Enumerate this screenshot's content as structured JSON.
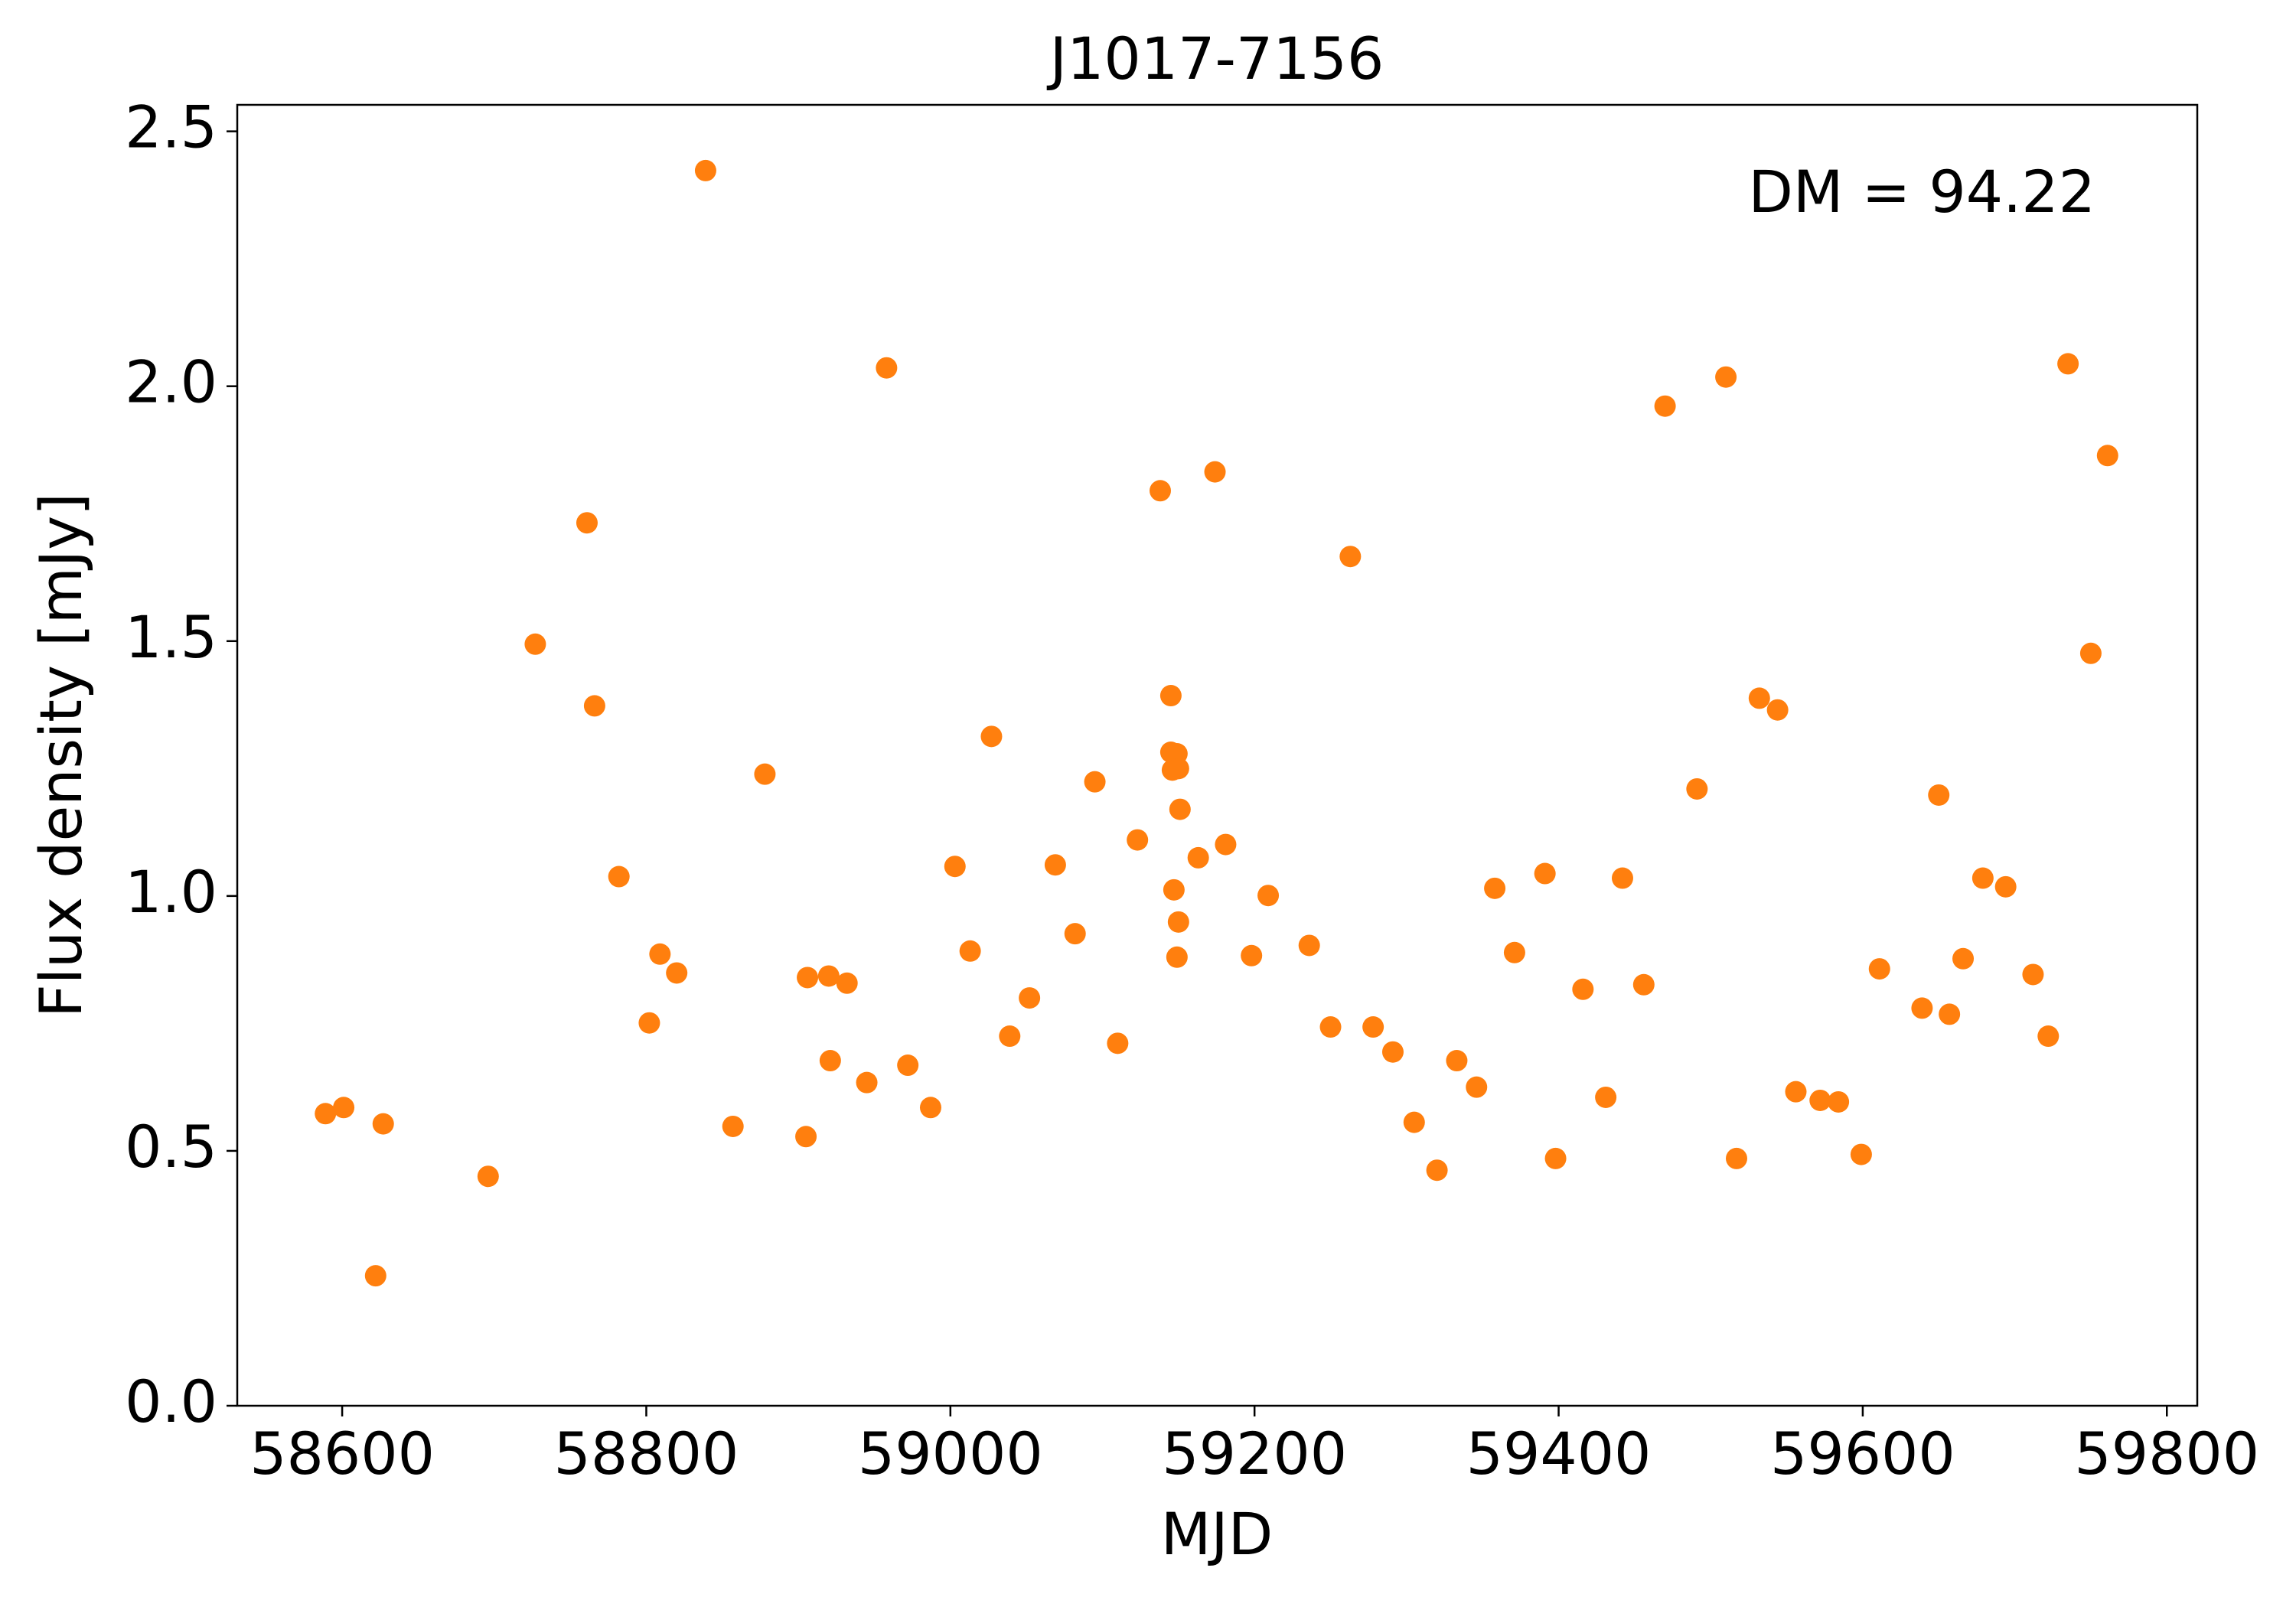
{
  "chart_data": {
    "type": "scatter",
    "title": "J1017-7156",
    "xlabel": "MJD",
    "ylabel": "Flux density [mJy]",
    "annotation": "DM = 94.22",
    "color": "#ff7f0e",
    "x": [
      58589,
      58601,
      58622,
      58627,
      58696,
      58727,
      58761,
      58766,
      58782,
      58802,
      58809,
      58820,
      58839,
      58857,
      58878,
      58905,
      58906,
      58920,
      58921,
      58932,
      58945,
      58958,
      58972,
      58987,
      59003,
      59013,
      59027,
      59039,
      59052,
      59069,
      59082,
      59095,
      59110,
      59123,
      59138,
      59145,
      59145,
      59146,
      59149,
      59150,
      59147,
      59151,
      59150,
      59149,
      59163,
      59174,
      59181,
      59198,
      59209,
      59236,
      59250,
      59263,
      59278,
      59291,
      59305,
      59320,
      59333,
      59346,
      59358,
      59371,
      59391,
      59398,
      59416,
      59431,
      59442,
      59456,
      59470,
      59491,
      59510,
      59517,
      59532,
      59544,
      59556,
      59572,
      59584,
      59599,
      59611,
      59639,
      59650,
      59657,
      59666,
      59679,
      59694,
      59712,
      59722,
      59735,
      59750,
      59761
    ],
    "values": [
      0.573,
      0.585,
      0.255,
      0.553,
      0.45,
      1.494,
      1.732,
      1.373,
      1.038,
      0.751,
      0.886,
      0.849,
      2.423,
      0.548,
      1.239,
      0.528,
      0.84,
      0.843,
      0.677,
      0.829,
      0.634,
      2.036,
      0.668,
      0.585,
      1.058,
      0.892,
      1.313,
      0.725,
      0.8,
      1.061,
      0.926,
      1.224,
      0.711,
      1.11,
      1.795,
      1.393,
      1.282,
      1.247,
      1.279,
      1.25,
      1.012,
      1.17,
      0.949,
      0.88,
      1.075,
      1.832,
      1.101,
      0.883,
      1.001,
      0.903,
      0.743,
      1.666,
      0.743,
      0.694,
      0.556,
      0.462,
      0.677,
      0.625,
      1.015,
      0.889,
      1.044,
      0.485,
      0.817,
      0.605,
      1.035,
      0.826,
      1.961,
      1.21,
      2.018,
      0.485,
      1.388,
      1.365,
      0.616,
      0.599,
      0.596,
      0.493,
      0.857,
      0.78,
      1.198,
      0.768,
      0.877,
      1.035,
      1.018,
      0.846,
      0.725,
      2.044,
      1.476,
      1.864
    ],
    "xlim": [
      58531,
      59820
    ],
    "ylim": [
      0,
      2.552
    ],
    "xticks": [
      58600,
      58800,
      59000,
      59200,
      59400,
      59600,
      59800
    ],
    "yticks": [
      {
        "value": 0,
        "label": "0.0"
      },
      0.5,
      {
        "value": 1,
        "label": "1.0"
      },
      1.5,
      {
        "value": 2,
        "label": "2.0"
      },
      2.5
    ]
  }
}
